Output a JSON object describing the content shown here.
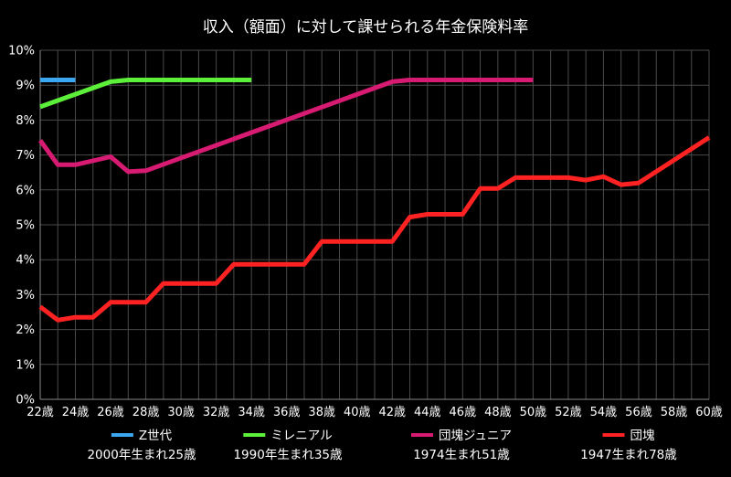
{
  "chart_data": {
    "type": "line",
    "title": "収入（額面）に対して課せられる年金保険料率",
    "x_unit": "歳",
    "x_ticks": [
      "22歳",
      "24歳",
      "26歳",
      "28歳",
      "30歳",
      "32歳",
      "34歳",
      "36歳",
      "38歳",
      "40歳",
      "42歳",
      "44歳",
      "46歳",
      "48歳",
      "50歳",
      "52歳",
      "54歳",
      "56歳",
      "58歳",
      "60歳"
    ],
    "y_ticks": [
      "0%",
      "1%",
      "2%",
      "3%",
      "4%",
      "5%",
      "6%",
      "7%",
      "8%",
      "9%",
      "10%"
    ],
    "xlim": [
      22,
      60
    ],
    "ylim": [
      0,
      10
    ],
    "grid": true,
    "legend_position": "bottom",
    "series": [
      {
        "name": "Z世代",
        "sub": "2000年生まれ25歳",
        "color": "#3aa7f0",
        "x": [
          22,
          24
        ],
        "values": [
          9.15,
          9.15
        ]
      },
      {
        "name": "ミレニアル",
        "sub": "1990年生まれ35歳",
        "color": "#5cf03a",
        "x": [
          22,
          26,
          27,
          28,
          34
        ],
        "values": [
          8.38,
          9.1,
          9.15,
          9.15,
          9.15
        ]
      },
      {
        "name": "団塊ジュニア",
        "sub": "1974生まれ51歳",
        "color": "#d81b72",
        "x": [
          22,
          23,
          24,
          26,
          27,
          28,
          42,
          43,
          50
        ],
        "values": [
          7.42,
          6.72,
          6.72,
          6.95,
          6.52,
          6.55,
          9.1,
          9.15,
          9.15
        ]
      },
      {
        "name": "団塊",
        "sub": "1947生まれ78歳",
        "color": "#ff2222",
        "x": [
          22,
          23,
          24,
          25,
          26,
          27,
          28,
          29,
          32,
          33,
          37,
          38,
          42,
          43,
          44,
          46,
          47,
          48,
          49,
          52,
          53,
          54,
          55,
          56,
          60
        ],
        "values": [
          2.65,
          2.27,
          2.35,
          2.35,
          2.78,
          2.78,
          2.78,
          3.32,
          3.32,
          3.87,
          3.87,
          4.52,
          4.52,
          5.22,
          5.3,
          5.3,
          6.04,
          6.04,
          6.35,
          6.35,
          6.28,
          6.38,
          6.15,
          6.2,
          7.5
        ]
      }
    ]
  }
}
